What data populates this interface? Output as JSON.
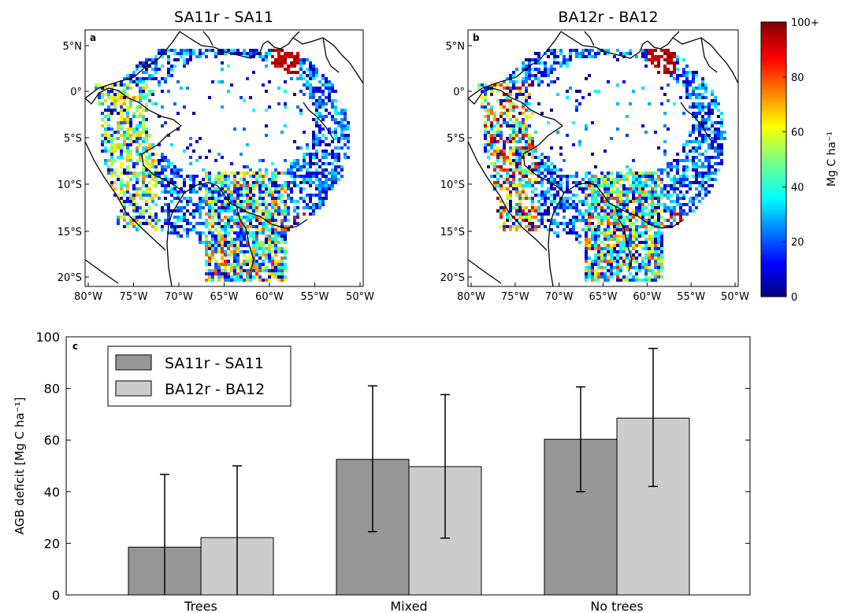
{
  "maps": [
    {
      "title": "SA11r - SA11",
      "letter": "a",
      "lat_ticks": [
        "5°N",
        "0°",
        "5°S",
        "10°S",
        "15°S",
        "20°S"
      ],
      "lon_ticks": [
        "80°W",
        "75°W",
        "70°W",
        "65°W",
        "60°W",
        "55°W",
        "50°W"
      ]
    },
    {
      "title": "BA12r - BA12",
      "letter": "b",
      "lat_ticks": [
        "5°N",
        "0°",
        "5°S",
        "10°S",
        "15°S",
        "20°S"
      ],
      "lon_ticks": [
        "80°W",
        "75°W",
        "70°W",
        "65°W",
        "60°W",
        "55°W",
        "50°W"
      ]
    }
  ],
  "colorbar": {
    "label": "Mg C ha⁻¹",
    "ticks": [
      "100+",
      "80",
      "60",
      "40",
      "20",
      "0"
    ],
    "tick_values": [
      100,
      80,
      60,
      40,
      20,
      0
    ],
    "colormap": "jet"
  },
  "chart_data": {
    "type": "bar",
    "letter": "c",
    "categories": [
      "Trees",
      "Mixed",
      "No trees"
    ],
    "ylabel": "AGB deficit [Mg C ha⁻¹]",
    "ylim": [
      0,
      100
    ],
    "yticks": [
      0,
      20,
      40,
      60,
      80,
      100
    ],
    "legend_position": "top-left",
    "series": [
      {
        "name": "SA11r - SA11",
        "color": "#969696",
        "values": [
          18.5,
          52.5,
          60.3
        ],
        "err_low": [
          0,
          24.5,
          40.0
        ],
        "err_high": [
          46.7,
          81.0,
          80.6
        ]
      },
      {
        "name": "BA12r - BA12",
        "color": "#cccccc",
        "values": [
          22.2,
          49.7,
          68.5
        ],
        "err_low": [
          0,
          22.0,
          42.0
        ],
        "err_high": [
          50.0,
          77.6,
          95.5
        ]
      }
    ]
  }
}
